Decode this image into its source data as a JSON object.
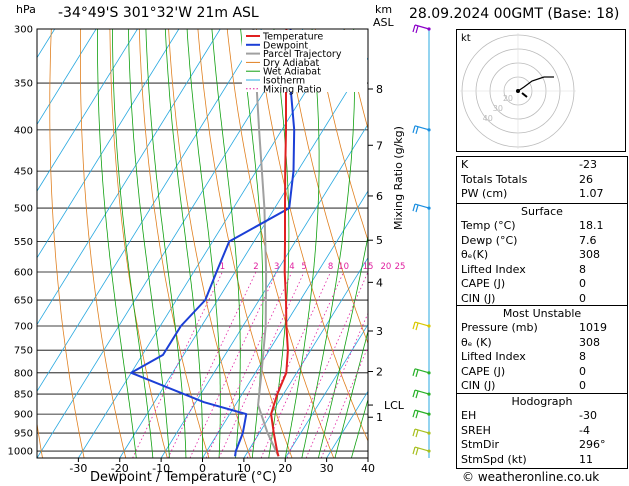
{
  "header": {
    "location": "-34°49'S 301°32'W 21m ASL",
    "datetime": "28.09.2024 00GMT (Base: 18)",
    "hpa_label": "hPa",
    "km_label": "km",
    "asl_label": "ASL"
  },
  "chart_data": {
    "type": "skew-t",
    "xlabel": "Dewpoint / Temperature (°C)",
    "ylabel": "Mixing Ratio (g/kg)",
    "x_ticks": [
      -30,
      -20,
      -10,
      0,
      10,
      20,
      30,
      40
    ],
    "xlim": [
      -40,
      40
    ],
    "pressure_levels": [
      300,
      350,
      400,
      450,
      500,
      550,
      600,
      650,
      700,
      750,
      800,
      850,
      900,
      950,
      1000
    ],
    "ylim": [
      1020,
      300
    ],
    "km_ticks": [
      {
        "label": "8",
        "p": 356
      },
      {
        "label": "7",
        "p": 418
      },
      {
        "label": "6",
        "p": 483
      },
      {
        "label": "5",
        "p": 548
      },
      {
        "label": "4",
        "p": 618
      },
      {
        "label": "3",
        "p": 710
      },
      {
        "label": "2",
        "p": 797
      },
      {
        "label": "LCL",
        "p": 877
      },
      {
        "label": "1",
        "p": 908
      }
    ],
    "mixing_ratio_labels": [
      {
        "label": "1",
        "t": -24
      },
      {
        "label": "2",
        "t": -14
      },
      {
        "label": "3",
        "t": -8
      },
      {
        "label": "4",
        "t": -4
      },
      {
        "label": "5",
        "t": 0
      },
      {
        "label": "8",
        "t": 5
      },
      {
        "label": "10",
        "t": 8
      },
      {
        "label": "15",
        "t": 14
      },
      {
        "label": "20",
        "t": 18
      },
      {
        "label": "25",
        "t": 21
      }
    ],
    "mixing_ratio_values": [
      1,
      2,
      3,
      4,
      5,
      8,
      10,
      15,
      20,
      25
    ],
    "legend": [
      "Temperature",
      "Dewpoint",
      "Parcel Trajectory",
      "Dry Adiabat",
      "Wet Adiabat",
      "Isotherm",
      "Mixing Ratio"
    ],
    "legend_position": "top-right of plot",
    "colors": {
      "temperature": "#e02020",
      "dewpoint": "#1c3fd6",
      "parcel": "#a0a0a0",
      "dry_adiabat": "#e08020",
      "wet_adiabat": "#10a010",
      "isotherm": "#28a8e0",
      "mixing_ratio": "#e020a0"
    },
    "temperature_profile": [
      {
        "p": 1015,
        "t": 18.1
      },
      {
        "p": 1000,
        "t": 17.0
      },
      {
        "p": 950,
        "t": 13.5
      },
      {
        "p": 900,
        "t": 10.0
      },
      {
        "p": 850,
        "t": 8.5
      },
      {
        "p": 800,
        "t": 7.5
      },
      {
        "p": 750,
        "t": 4.5
      },
      {
        "p": 700,
        "t": 0.5
      },
      {
        "p": 650,
        "t": -3.5
      },
      {
        "p": 600,
        "t": -8.0
      },
      {
        "p": 550,
        "t": -12.5
      },
      {
        "p": 500,
        "t": -17.5
      },
      {
        "p": 450,
        "t": -23.0
      },
      {
        "p": 400,
        "t": -29.0
      },
      {
        "p": 350,
        "t": -36.0
      },
      {
        "p": 300,
        "t": -44.0
      }
    ],
    "dewpoint_profile": [
      {
        "p": 1015,
        "t": 7.6
      },
      {
        "p": 1000,
        "t": 7.0
      },
      {
        "p": 950,
        "t": 6.0
      },
      {
        "p": 900,
        "t": 4.0
      },
      {
        "p": 870,
        "t": -8.0
      },
      {
        "p": 800,
        "t": -30.0
      },
      {
        "p": 760,
        "t": -25.0
      },
      {
        "p": 700,
        "t": -25.0
      },
      {
        "p": 650,
        "t": -23.0
      },
      {
        "p": 600,
        "t": -24.5
      },
      {
        "p": 550,
        "t": -26.0
      },
      {
        "p": 500,
        "t": -16.5
      },
      {
        "p": 450,
        "t": -21.0
      },
      {
        "p": 400,
        "t": -27.0
      },
      {
        "p": 350,
        "t": -35.0
      },
      {
        "p": 300,
        "t": -43.0
      }
    ],
    "parcel_profile": [
      {
        "p": 1015,
        "t": 18.1
      },
      {
        "p": 950,
        "t": 12.0
      },
      {
        "p": 877,
        "t": 5.5
      },
      {
        "p": 800,
        "t": 1.5
      },
      {
        "p": 700,
        "t": -4.5
      },
      {
        "p": 600,
        "t": -12.5
      },
      {
        "p": 500,
        "t": -22.5
      },
      {
        "p": 400,
        "t": -35.5
      },
      {
        "p": 300,
        "t": -52.0
      }
    ],
    "wind_barbs": [
      {
        "p": 300,
        "color": "#8b00c8"
      },
      {
        "p": 400,
        "color": "#1a8ee0"
      },
      {
        "p": 500,
        "color": "#1a8ee0"
      },
      {
        "p": 700,
        "color": "#d8c800"
      },
      {
        "p": 800,
        "color": "#28b028"
      },
      {
        "p": 850,
        "color": "#28b028"
      },
      {
        "p": 900,
        "color": "#28b028"
      },
      {
        "p": 950,
        "color": "#a8c020"
      },
      {
        "p": 1000,
        "color": "#a8c020"
      }
    ]
  },
  "hodograph": {
    "unit_label": "kt",
    "ring_labels": [
      "40",
      "30",
      "20"
    ]
  },
  "indices": [
    {
      "label": "K",
      "value": "-23"
    },
    {
      "label": "Totals Totals",
      "value": "26"
    },
    {
      "label": "PW (cm)",
      "value": "1.07"
    }
  ],
  "surface": {
    "title": "Surface",
    "rows": [
      {
        "label": "Temp (°C)",
        "value": "18.1"
      },
      {
        "label": "Dewp (°C)",
        "value": "7.6"
      },
      {
        "label": "θₑ(K)",
        "value": "308"
      },
      {
        "label": "Lifted Index",
        "value": "8"
      },
      {
        "label": "CAPE (J)",
        "value": "0"
      },
      {
        "label": "CIN (J)",
        "value": "0"
      }
    ]
  },
  "most_unstable": {
    "title": "Most Unstable",
    "rows": [
      {
        "label": "Pressure (mb)",
        "value": "1019"
      },
      {
        "label": "θₑ (K)",
        "value": "308"
      },
      {
        "label": "Lifted Index",
        "value": "8"
      },
      {
        "label": "CAPE (J)",
        "value": "0"
      },
      {
        "label": "CIN (J)",
        "value": "0"
      }
    ]
  },
  "hodograph_table": {
    "title": "Hodograph",
    "rows": [
      {
        "label": "EH",
        "value": "-30"
      },
      {
        "label": "SREH",
        "value": "-4"
      },
      {
        "label": "StmDir",
        "value": "296°"
      },
      {
        "label": "StmSpd (kt)",
        "value": "11"
      }
    ]
  },
  "footer": {
    "copyright": "© weatheronline.co.uk"
  }
}
